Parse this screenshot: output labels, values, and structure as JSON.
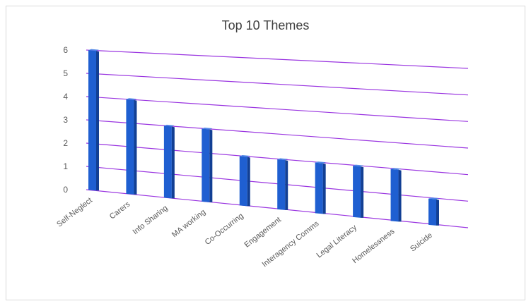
{
  "chart_data": {
    "type": "bar",
    "title": "Top 10 Themes",
    "categories": [
      "Self-Neglect",
      "Carers",
      "Info Sharing",
      "MA working",
      "Co-Occurring",
      "Engagement",
      "Interagency Comms",
      "Legal Literacy",
      "Homelessness",
      "Suicide"
    ],
    "values": [
      6,
      4,
      3,
      3,
      2,
      2,
      2,
      2,
      2,
      1
    ],
    "ylim": [
      0,
      6
    ],
    "yticks": [
      0,
      1,
      2,
      3,
      4,
      5,
      6
    ],
    "xlabel": "",
    "ylabel": "",
    "grid": true,
    "legend": "none",
    "style": "3d-perspective",
    "colors": {
      "bar_front": "#1f5fd1",
      "bar_side": "#123f94",
      "bar_top": "#4f86e6",
      "grid": "#9a35e0"
    }
  }
}
